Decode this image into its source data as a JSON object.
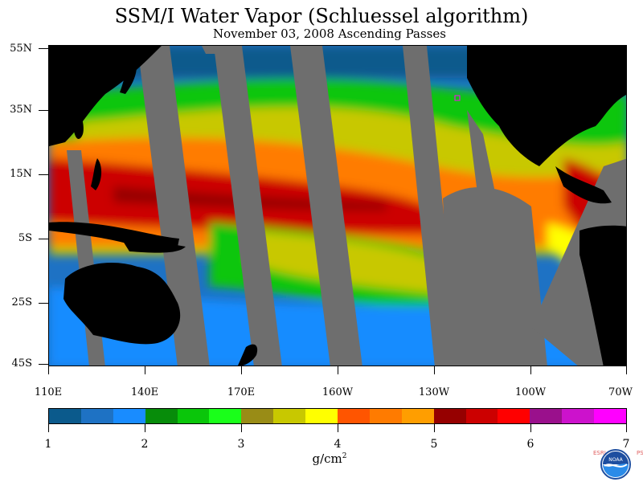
{
  "title": "SSM/I Water Vapor (Schluessel algorithm)",
  "subtitle": "November 03, 2008  Ascending Passes",
  "lat_labels": [
    "55N",
    "35N",
    "15N",
    "5S",
    "25S",
    "45S"
  ],
  "lon_labels": [
    "110E",
    "140E",
    "170E",
    "160W",
    "130W",
    "100W",
    "70W"
  ],
  "colorbar": {
    "colors": [
      "#0b5a8c",
      "#1e72c4",
      "#198cff",
      "#078c0a",
      "#0ac60a",
      "#1aff1a",
      "#998c16",
      "#c8c800",
      "#ffff00",
      "#ff5500",
      "#ff7b00",
      "#ff9e00",
      "#960000",
      "#cc0000",
      "#ff0000",
      "#9a108c",
      "#cc12cc",
      "#ff00ff"
    ],
    "tick_labels": [
      "1",
      "2",
      "3",
      "4",
      "5",
      "6",
      "7"
    ],
    "range": [
      1,
      7
    ],
    "units_base": "g/cm",
    "units_exp": "2"
  },
  "logo": {
    "text": "NOAA",
    "left_letters": "ESRL",
    "right_letters": "PSD"
  },
  "map_colors": {
    "land": "#000000",
    "no_data": "#6e6e6e",
    "ocean_base": "#2a8be8"
  }
}
